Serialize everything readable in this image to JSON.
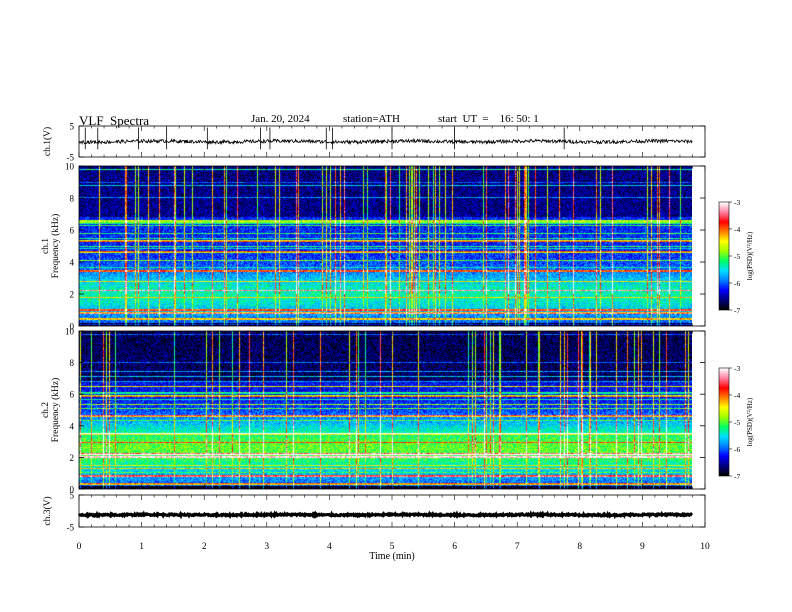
{
  "header": {
    "title": "VLF  Spectra",
    "date": "Jan. 20, 2024",
    "station": "station=ATH",
    "start": "start  UT  =    16: 50: 1"
  },
  "chart_data": [
    {
      "type": "line",
      "ylabel": "ch.1(V)",
      "ylim": [
        -5,
        5
      ],
      "yticks": [
        "5",
        "-5"
      ],
      "series": [
        {
          "mean": 0,
          "noise": 0.55,
          "spikes": [
            0.1,
            0.3,
            0.95,
            1.4,
            2.05,
            2.9,
            3.05,
            3.95,
            4.05,
            5.0,
            6.0,
            7.75
          ]
        }
      ]
    },
    {
      "type": "heatmap",
      "ylabel": "Frequency (kHz)",
      "channel": "ch.1",
      "ylim": [
        0,
        10
      ],
      "yticks": [
        "0",
        "2",
        "4",
        "6",
        "8",
        "10"
      ],
      "xlim": [
        0,
        9.8
      ],
      "notable_lines_khz": [
        0.4,
        0.8,
        1.0,
        2.2,
        3.4,
        4.6,
        5.3,
        6.6
      ]
    },
    {
      "type": "heatmap",
      "ylabel": "Frequency (kHz)",
      "channel": "ch.2",
      "ylim": [
        0,
        10
      ],
      "yticks": [
        "0",
        "2",
        "4",
        "6",
        "8",
        "10"
      ],
      "xlim": [
        0,
        9.8
      ],
      "notable_lines_khz": [
        0.3,
        0.8,
        2.0,
        2.2,
        3.5,
        4.6,
        5.9,
        6.5
      ]
    },
    {
      "type": "line",
      "ylabel": "ch.3(V)",
      "ylim": [
        -5,
        5
      ],
      "yticks": [
        "5",
        "-5"
      ],
      "series": [
        {
          "mean": -1.2,
          "noise": 0.25,
          "spikes": []
        }
      ]
    }
  ],
  "colorbar": {
    "label": "log(PSD)(V²/Hz)",
    "range": [
      -7,
      -3
    ],
    "ticks": [
      "-3",
      "-4",
      "-5",
      "-6",
      "-7"
    ],
    "colors": [
      "#000000",
      "#000080",
      "#0000ff",
      "#0080ff",
      "#00e0ff",
      "#00ff60",
      "#a0ff00",
      "#ffff00",
      "#ff8000",
      "#ff0000",
      "#ff80a0",
      "#ffffff"
    ]
  },
  "xaxis": {
    "label": "Time  (min)",
    "range": [
      0,
      10
    ],
    "ticks": [
      "0",
      "1",
      "2",
      "3",
      "4",
      "5",
      "6",
      "7",
      "8",
      "9",
      "10"
    ]
  }
}
